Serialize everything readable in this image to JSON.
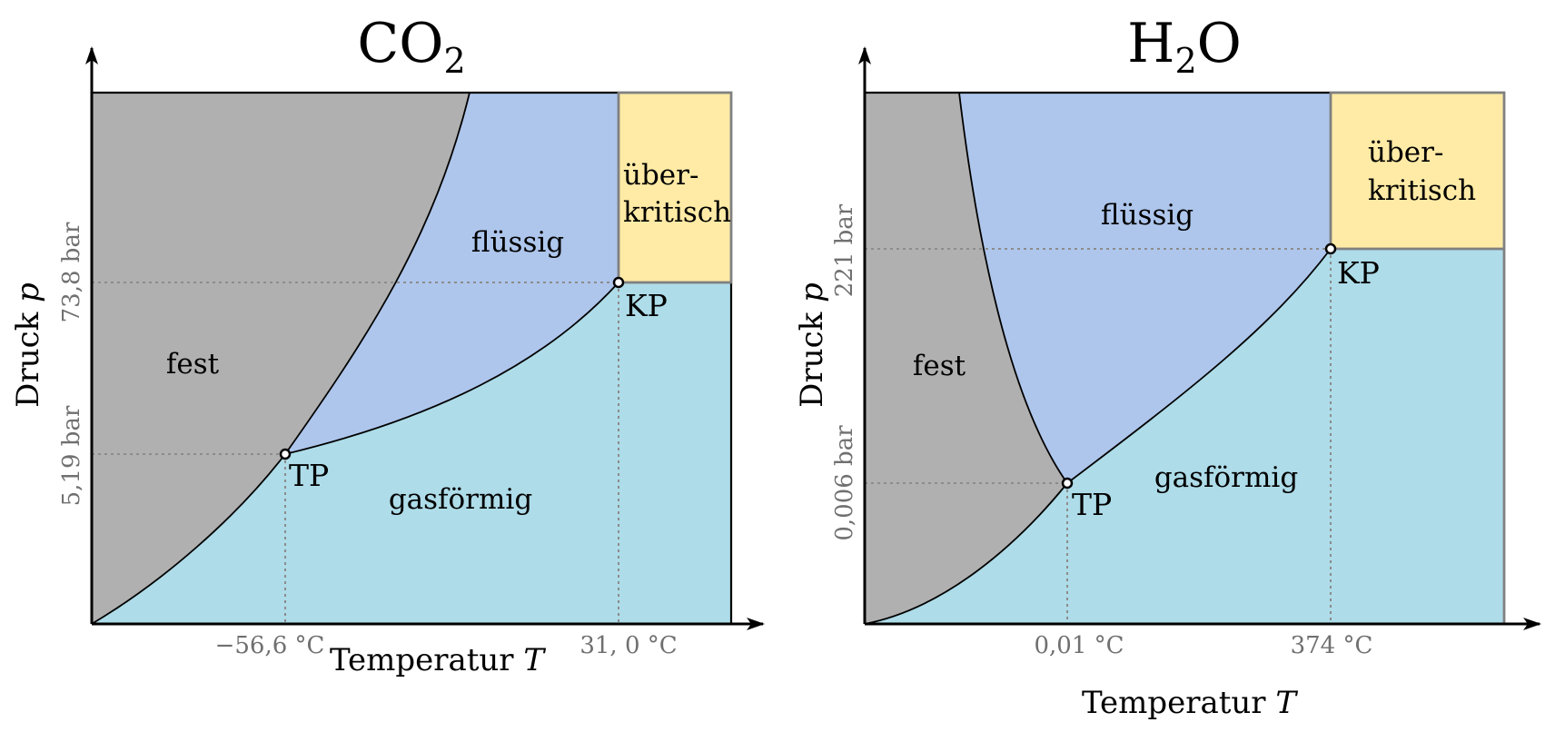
{
  "colors": {
    "solid": "#b0b0b0",
    "liquid": "#aec6ec",
    "gas": "#aedce9",
    "supercritical": "#ffeba6",
    "border_gray": "#808080",
    "guide_gray": "#8c8c8c"
  },
  "diagrams": [
    {
      "title_main": "CO",
      "title_sub": "2",
      "title_tail": "",
      "y_label": "Druck ",
      "y_label_var": "p",
      "x_label": "Temperatur ",
      "x_label_var": "T",
      "y_ticks": [
        "73,8 bar",
        "5,19 bar"
      ],
      "x_ticks": [
        "−56,6 °C",
        "31, 0 °C"
      ],
      "regions": {
        "solid": "fest",
        "liquid": "flüssig",
        "gas": "gasförmig",
        "supercritical_line1": "über-",
        "supercritical_line2": "kritisch"
      },
      "points": {
        "triple": "TP",
        "critical": "KP"
      }
    },
    {
      "title_main": "H",
      "title_sub": "2",
      "title_tail": "O",
      "y_label": "Druck ",
      "y_label_var": "p",
      "x_label": "Temperatur ",
      "x_label_var": "T",
      "y_ticks": [
        "221 bar",
        "0,006 bar"
      ],
      "x_ticks": [
        "0,01 °C",
        "374 °C"
      ],
      "regions": {
        "solid": "fest",
        "liquid": "flüssig",
        "gas": "gasförmig",
        "supercritical_line1": "über-",
        "supercritical_line2": "kritisch"
      },
      "points": {
        "triple": "TP",
        "critical": "KP"
      }
    }
  ]
}
